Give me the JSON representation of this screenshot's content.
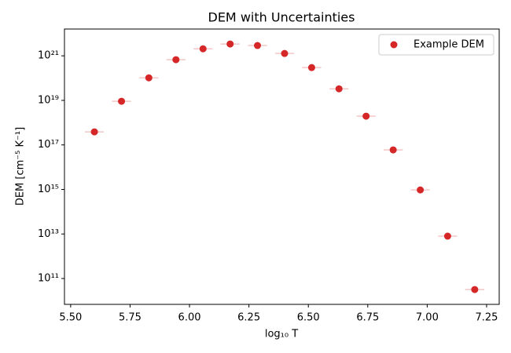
{
  "chart_data": {
    "type": "scatter",
    "title": "DEM with Uncertainties",
    "x_label": "log₁₀ T",
    "y_label": "DEM [cm⁻⁵ K⁻¹]",
    "y_scale": "log",
    "legend": "upper right",
    "xlim": [
      5.474,
      7.303
    ],
    "ylim": [
      6900000000.0,
      1.6e+22
    ],
    "xticks": [
      {
        "value": 5.5,
        "label": "5.50"
      },
      {
        "value": 5.75,
        "label": "5.75"
      },
      {
        "value": 6.0,
        "label": "6.00"
      },
      {
        "value": 6.25,
        "label": "6.25"
      },
      {
        "value": 6.5,
        "label": "6.50"
      },
      {
        "value": 6.75,
        "label": "6.75"
      },
      {
        "value": 7.0,
        "label": "7.00"
      },
      {
        "value": 7.25,
        "label": "7.25"
      }
    ],
    "yticks": [
      {
        "value": 100000000000.0,
        "label": "10¹¹"
      },
      {
        "value": 10000000000000.0,
        "label": "10¹³"
      },
      {
        "value": 1000000000000000.0,
        "label": "10¹⁵"
      },
      {
        "value": 1e+17,
        "label": "10¹⁷"
      },
      {
        "value": 1e+19,
        "label": "10¹⁹"
      },
      {
        "value": 1e+21,
        "label": "10²¹"
      }
    ],
    "series": [
      {
        "name": "Example DEM",
        "color": "#d62728",
        "error_color": "#f4c6c6",
        "xerr": 0.04,
        "x": [
          5.6,
          5.714,
          5.829,
          5.943,
          6.057,
          6.171,
          6.286,
          6.4,
          6.514,
          6.629,
          6.743,
          6.857,
          6.971,
          7.086,
          7.2
        ],
        "values": [
          3.85e+17,
          9.1e+18,
          1.03e+20,
          6.7e+20,
          2.07e+21,
          3.4e+21,
          2.9e+21,
          1.28e+21,
          2.97e+20,
          3.3e+19,
          1.95e+18,
          5.96e+16,
          950000000000000.0,
          8000000000000.0,
          32000000000.0
        ]
      }
    ]
  }
}
